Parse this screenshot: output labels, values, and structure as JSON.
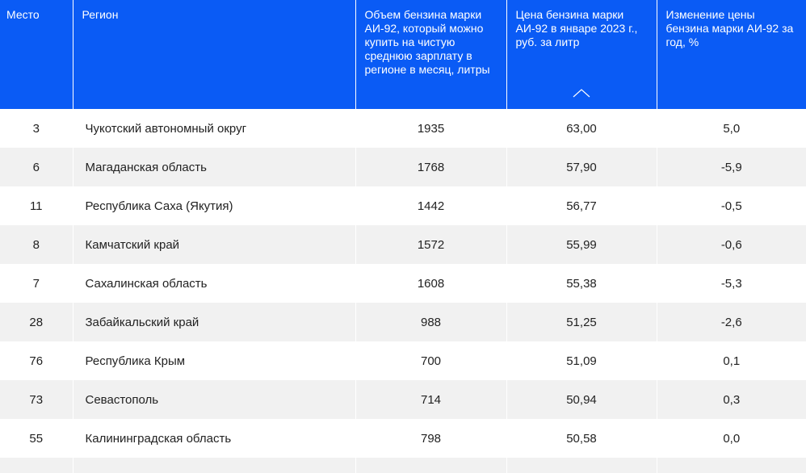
{
  "table": {
    "headers": {
      "place": "Место",
      "region": "Регион",
      "volume": "Объем бензина марки АИ-92, который можно купить на чистую среднюю зарплату в регионе в месяц, литры",
      "price": "Цена бензина марки АИ-92 в январе 2023 г., руб. за литр",
      "change": "Изменение цены бензина марки АИ-92 за год, %"
    },
    "sort_icon": "chevron-up-icon",
    "rows": [
      {
        "place": "3",
        "region": "Чукотский автономный округ",
        "volume": "1935",
        "price": "63,00",
        "change": "5,0"
      },
      {
        "place": "6",
        "region": "Магаданская область",
        "volume": "1768",
        "price": "57,90",
        "change": "-5,9"
      },
      {
        "place": "11",
        "region": "Республика Саха (Якутия)",
        "volume": "1442",
        "price": "56,77",
        "change": "-0,5"
      },
      {
        "place": "8",
        "region": "Камчатский край",
        "volume": "1572",
        "price": "55,99",
        "change": "-0,6"
      },
      {
        "place": "7",
        "region": "Сахалинская область",
        "volume": "1608",
        "price": "55,38",
        "change": "-5,3"
      },
      {
        "place": "28",
        "region": "Забайкальский край",
        "volume": "988",
        "price": "51,25",
        "change": "-2,6"
      },
      {
        "place": "76",
        "region": "Республика Крым",
        "volume": "700",
        "price": "51,09",
        "change": "0,1"
      },
      {
        "place": "73",
        "region": "Севастополь",
        "volume": "714",
        "price": "50,94",
        "change": "0,3"
      },
      {
        "place": "55",
        "region": "Калининградская область",
        "volume": "798",
        "price": "50,58",
        "change": "0,0"
      },
      {
        "place": "",
        "region": "",
        "volume": "",
        "price": "",
        "change": ""
      }
    ]
  },
  "colors": {
    "header_bg": "#0a5bf5",
    "stripe_bg": "#f1f1f1"
  }
}
